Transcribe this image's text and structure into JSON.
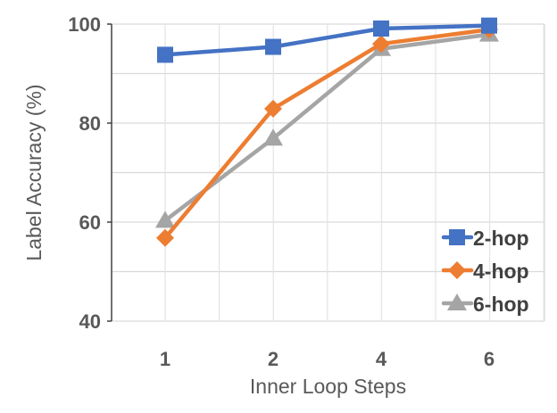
{
  "chart_data": {
    "type": "line",
    "title": "",
    "xlabel": "Inner Loop Steps",
    "ylabel": "Label Accuracy (%)",
    "categories": [
      "1",
      "2",
      "4",
      "6"
    ],
    "ylim": [
      40,
      100
    ],
    "yticks": [
      "40",
      "60",
      "80",
      "100"
    ],
    "grid": true,
    "legend_position": "bottom-right",
    "series": [
      {
        "name": "2-hop",
        "color": "#4472C4",
        "marker": "square",
        "values": [
          93.8,
          95.4,
          99.1,
          99.7
        ]
      },
      {
        "name": "4-hop",
        "color": "#ED7D31",
        "marker": "diamond",
        "values": [
          56.8,
          82.9,
          96.0,
          98.9
        ]
      },
      {
        "name": "6-hop",
        "color": "#A5A5A5",
        "marker": "triangle",
        "values": [
          60.3,
          76.9,
          95.0,
          97.9
        ]
      }
    ]
  }
}
